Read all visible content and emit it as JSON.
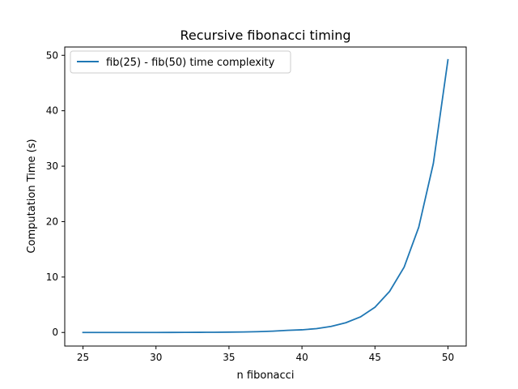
{
  "chart_data": {
    "type": "line",
    "title": "Recursive fibonacci timing",
    "xlabel": "n fibonacci",
    "ylabel": "Computation Time (s)",
    "xlim": [
      23.75,
      51.25
    ],
    "ylim": [
      -2.45,
      51.5
    ],
    "xticks": [
      25,
      30,
      35,
      40,
      45,
      50
    ],
    "yticks": [
      0,
      10,
      20,
      30,
      40,
      50
    ],
    "grid": false,
    "legend_position": "upper-left",
    "series": [
      {
        "name": "fib(25) - fib(50) time complexity",
        "color": "#1f77b4",
        "x": [
          25,
          26,
          27,
          28,
          29,
          30,
          31,
          32,
          33,
          34,
          35,
          36,
          37,
          38,
          39,
          40,
          41,
          42,
          43,
          44,
          45,
          46,
          47,
          48,
          49,
          50
        ],
        "y": [
          0.0,
          0.0,
          0.0,
          0.0,
          0.0,
          0.0,
          0.01,
          0.02,
          0.03,
          0.04,
          0.06,
          0.09,
          0.15,
          0.24,
          0.38,
          0.48,
          0.7,
          1.1,
          1.75,
          2.8,
          4.55,
          7.4,
          11.8,
          19.0,
          30.5,
          49.2
        ]
      }
    ]
  }
}
